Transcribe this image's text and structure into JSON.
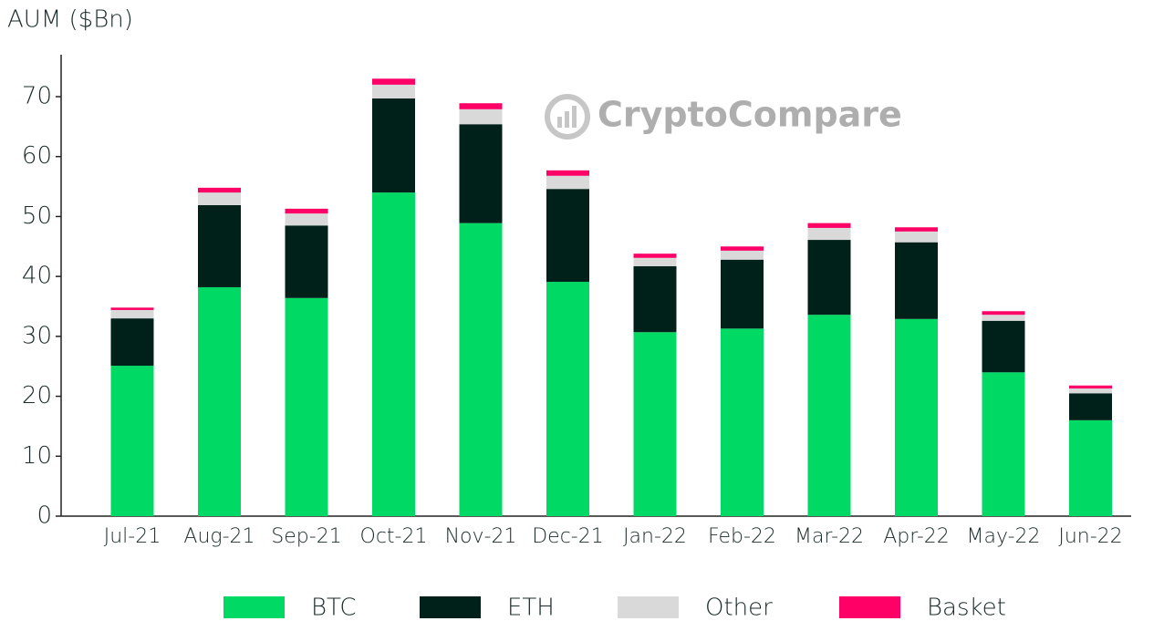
{
  "chart_data": {
    "type": "stacked_bar",
    "y_axis_label": "AUM ($Bn)",
    "watermark": "CryptoCompare",
    "categories": [
      "Jul-21",
      "Aug-21",
      "Sep-21",
      "Oct-21",
      "Nov-21",
      "Dec-21",
      "Jan-22",
      "Feb-22",
      "Mar-22",
      "Apr-22",
      "May-22",
      "Jun-22"
    ],
    "series": [
      {
        "name": "BTC",
        "color": "#00d964",
        "values": [
          25.1,
          38.2,
          36.4,
          54.0,
          48.9,
          39.1,
          30.7,
          31.3,
          33.6,
          32.9,
          24.0,
          16.0
        ]
      },
      {
        "name": "ETH",
        "color": "#00201a",
        "values": [
          7.9,
          13.7,
          12.1,
          15.7,
          16.5,
          15.5,
          11.0,
          11.5,
          12.5,
          12.8,
          8.6,
          4.5
        ]
      },
      {
        "name": "Other",
        "color": "#d9d9d9",
        "values": [
          1.4,
          2.1,
          2.0,
          2.3,
          2.5,
          2.2,
          1.4,
          1.5,
          2.0,
          1.8,
          1.0,
          0.8
        ]
      },
      {
        "name": "Basket",
        "color": "#ff0066",
        "values": [
          0.4,
          0.8,
          0.8,
          1.0,
          1.0,
          0.9,
          0.7,
          0.7,
          0.8,
          0.7,
          0.6,
          0.5
        ]
      }
    ],
    "ylim": [
      0,
      77
    ],
    "yticks": [
      0,
      10,
      20,
      30,
      40,
      50,
      60,
      70
    ],
    "grid": false,
    "legend": "bottom"
  }
}
